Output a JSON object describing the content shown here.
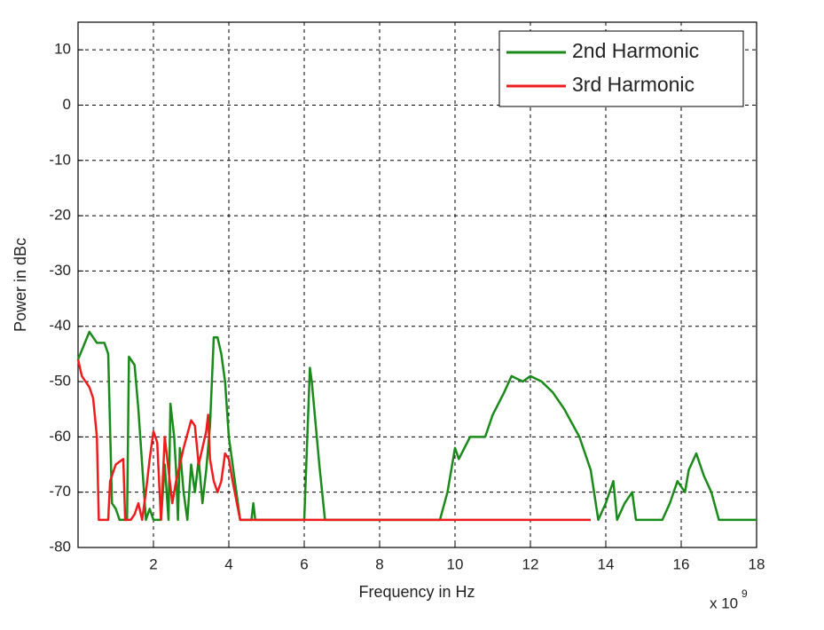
{
  "chart_data": {
    "type": "line",
    "xlabel": "Frequency in Hz",
    "ylabel": "Power in dBc",
    "x_multiplier": "x 10",
    "x_multiplier_exp": "9",
    "xlim": [
      0,
      18
    ],
    "ylim": [
      -80,
      15
    ],
    "xticks": [
      2,
      4,
      6,
      8,
      10,
      12,
      14,
      16,
      18
    ],
    "yticks": [
      -80,
      -70,
      -60,
      -50,
      -40,
      -30,
      -20,
      -10,
      0,
      10
    ],
    "grid": true,
    "legend_position": "upper-right",
    "series": [
      {
        "name": "2nd Harmonic",
        "color": "#1a8a1a",
        "x": [
          0,
          0.3,
          0.5,
          0.7,
          0.8,
          0.9,
          1.0,
          1.1,
          1.3,
          1.35,
          1.5,
          1.6,
          1.7,
          1.8,
          1.9,
          2.0,
          2.2,
          2.3,
          2.4,
          2.45,
          2.55,
          2.6,
          2.65,
          2.7,
          2.8,
          2.9,
          3.0,
          3.1,
          3.2,
          3.3,
          3.4,
          3.5,
          3.6,
          3.7,
          3.8,
          3.9,
          4.0,
          4.1,
          4.3,
          4.6,
          4.65,
          4.7,
          6.0,
          6.15,
          6.2,
          6.4,
          6.55,
          9.6,
          9.8,
          10.0,
          10.1,
          10.4,
          10.8,
          11.0,
          11.3,
          11.5,
          11.8,
          12.0,
          12.3,
          12.6,
          12.9,
          13.3,
          13.6,
          13.8,
          14.0,
          14.2,
          14.3,
          14.5,
          14.7,
          14.8,
          15.5,
          15.7,
          15.9,
          16.1,
          16.2,
          16.4,
          16.6,
          16.8,
          17.0,
          18.0
        ],
        "values": [
          -46,
          -41,
          -43,
          -43,
          -45,
          -72,
          -73,
          -75,
          -75,
          -45.5,
          -47,
          -55,
          -65,
          -75,
          -73,
          -75,
          -75,
          -65,
          -75,
          -54,
          -60,
          -66,
          -75,
          -62,
          -70,
          -75,
          -65,
          -70,
          -64,
          -72,
          -66,
          -58,
          -42,
          -42,
          -45,
          -50,
          -60,
          -65,
          -75,
          -75,
          -72,
          -75,
          -75,
          -47.5,
          -50,
          -65,
          -75,
          -75,
          -70,
          -62,
          -64,
          -60,
          -60,
          -56,
          -52,
          -49,
          -50,
          -49,
          -50,
          -52,
          -55,
          -60,
          -66,
          -75,
          -72,
          -68,
          -75,
          -72,
          -70,
          -75,
          -75,
          -72,
          -68,
          -70,
          -66,
          -63,
          -67,
          -70,
          -75,
          -75
        ]
      },
      {
        "name": "3rd Harmonic",
        "color": "#ee1c1c",
        "x": [
          0,
          0.1,
          0.3,
          0.4,
          0.5,
          0.55,
          0.8,
          0.85,
          1.0,
          1.2,
          1.25,
          1.4,
          1.5,
          1.6,
          1.7,
          1.8,
          1.9,
          2.0,
          2.1,
          2.2,
          2.3,
          2.5,
          2.6,
          2.8,
          3.0,
          3.1,
          3.2,
          3.3,
          3.4,
          3.45,
          3.5,
          3.6,
          3.7,
          3.8,
          3.9,
          4.0,
          4.1,
          4.3,
          13.6
        ],
        "values": [
          -46,
          -49,
          -51,
          -53,
          -60,
          -75,
          -75,
          -68,
          -65,
          -64,
          -75,
          -75,
          -74,
          -72,
          -75,
          -70,
          -64,
          -59,
          -61,
          -75,
          -60,
          -72,
          -68,
          -62,
          -57,
          -58,
          -65,
          -62,
          -59,
          -56,
          -64,
          -68,
          -70,
          -68,
          -63,
          -64,
          -68,
          -75,
          -75
        ]
      }
    ]
  }
}
